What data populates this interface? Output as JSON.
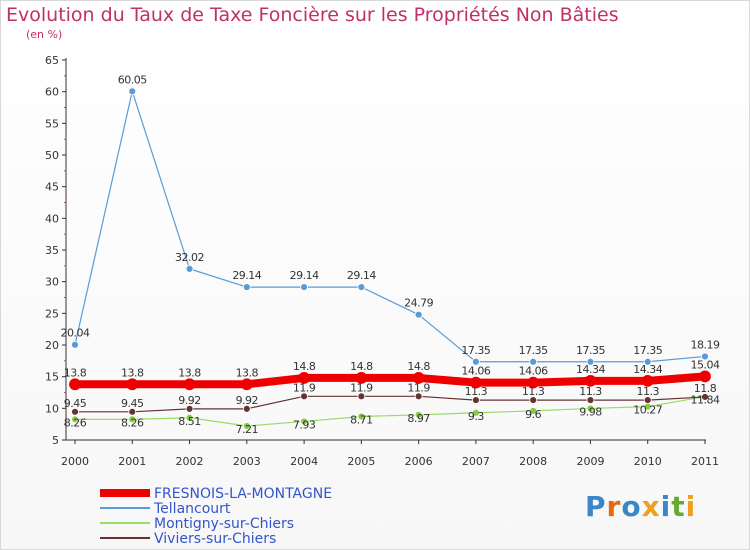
{
  "page": {
    "title": "Evolution du Taux de Taxe Foncière sur les Propriétés Non Bâties",
    "unit": "(en %)"
  },
  "brand": {
    "letters": [
      "P",
      "r",
      "o",
      "x",
      "i",
      "t",
      "i"
    ],
    "colors": [
      "#3a86c8",
      "#e86a10",
      "#3a86c8",
      "#f0a020",
      "#3a86c8",
      "#66aa33",
      "#f0a020"
    ]
  },
  "chart_data": {
    "type": "line",
    "title": "Evolution du Taux de Taxe Foncière sur les Propriétés Non Bâties",
    "ylabel": "(en %)",
    "xlabel": "",
    "ylim": [
      5,
      65
    ],
    "yticks": [
      5,
      10,
      15,
      20,
      25,
      30,
      35,
      40,
      45,
      50,
      55,
      60,
      65
    ],
    "categories": [
      "2000",
      "2001",
      "2002",
      "2003",
      "2004",
      "2005",
      "2006",
      "2007",
      "2008",
      "2009",
      "2010",
      "2011"
    ],
    "grid": false,
    "legend": "bottom-left",
    "series": [
      {
        "name": "FRESNOIS-LA-MONTAGNE",
        "color": "#ee0000",
        "width": 8,
        "values": [
          13.8,
          13.8,
          13.8,
          13.8,
          14.8,
          14.8,
          14.8,
          14.06,
          14.06,
          14.34,
          14.34,
          15.04
        ],
        "labels": [
          "13.8",
          "13.8",
          "13.8",
          "13.8",
          "14.8",
          "14.8",
          "14.8",
          "14.06",
          "14.06",
          "14.34",
          "14.34",
          "15.04"
        ]
      },
      {
        "name": "Tellancourt",
        "color": "#5b9bd5",
        "width": 1.2,
        "values": [
          20.04,
          60.05,
          32.02,
          29.14,
          29.14,
          29.14,
          24.79,
          17.35,
          17.35,
          17.35,
          17.35,
          18.19
        ],
        "labels": [
          "20.04",
          "60.05",
          "32.02",
          "29.14",
          "29.14",
          "29.14",
          "24.79",
          "17.35",
          "17.35",
          "17.35",
          "17.35",
          "18.19"
        ]
      },
      {
        "name": "Montigny-sur-Chiers",
        "color": "#99dd66",
        "width": 1.2,
        "values": [
          8.26,
          8.26,
          8.51,
          7.21,
          7.93,
          8.71,
          8.97,
          9.3,
          9.6,
          9.98,
          10.27,
          11.84
        ],
        "labels": [
          "8.26",
          "8.26",
          "8.51",
          "7.21",
          "7.93",
          "8.71",
          "8.97",
          "9.3",
          "9.6",
          "9.98",
          "10.27",
          "11.84"
        ]
      },
      {
        "name": "Viviers-sur-Chiers",
        "color": "#663333",
        "width": 1.2,
        "values": [
          9.45,
          9.45,
          9.92,
          9.92,
          11.9,
          11.9,
          11.9,
          11.3,
          11.3,
          11.3,
          11.3,
          11.8
        ],
        "labels": [
          "9.45",
          "9.45",
          "9.92",
          "9.92",
          "11.9",
          "11.9",
          "11.9",
          "11.3",
          "11.3",
          "11.3",
          "11.3",
          "11.8"
        ]
      }
    ]
  }
}
